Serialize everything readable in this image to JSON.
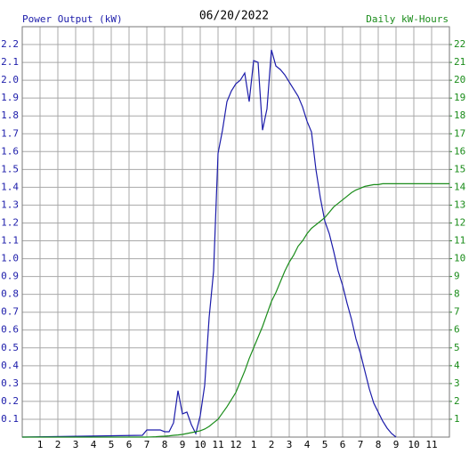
{
  "chart_data": {
    "type": "line",
    "title": "06/20/2022",
    "y_label": "Power Output (kW)",
    "y2_label": "Daily kW-Hours",
    "x": [
      0,
      6.75,
      7,
      7.25,
      7.5,
      7.75,
      8,
      8.25,
      8.5,
      8.75,
      9,
      9.25,
      9.5,
      9.75,
      10,
      10.25,
      10.5,
      10.75,
      11,
      11.25,
      11.5,
      11.75,
      12,
      12.25,
      12.5,
      12.75,
      13,
      13.25,
      13.5,
      13.75,
      14,
      14.25,
      14.5,
      14.75,
      15,
      15.25,
      15.5,
      15.75,
      16,
      16.25,
      16.5,
      16.75,
      17,
      17.25,
      17.5,
      17.75,
      18,
      18.25,
      18.5,
      18.75,
      19,
      19.25,
      19.5,
      19.75,
      20,
      20.25,
      20.5,
      20.75,
      21,
      24
    ],
    "series": [
      {
        "name": "Power Output (kW)",
        "color": "#1c1caa",
        "values": [
          0,
          0.01,
          0.04,
          0.04,
          0.04,
          0.04,
          0.03,
          0.03,
          0.08,
          0.26,
          0.13,
          0.14,
          0.07,
          0.02,
          0.12,
          0.29,
          0.67,
          0.93,
          1.59,
          1.72,
          1.88,
          1.94,
          1.98,
          2.0,
          2.04,
          1.88,
          2.11,
          2.1,
          1.72,
          1.84,
          2.17,
          2.08,
          2.06,
          2.03,
          1.99,
          1.95,
          1.91,
          1.85,
          1.77,
          1.71,
          1.5,
          1.34,
          1.21,
          1.14,
          1.04,
          0.93,
          0.85,
          0.75,
          0.66,
          0.55,
          0.47,
          0.37,
          0.27,
          0.19,
          0.14,
          0.09,
          0.05,
          0.02,
          0,
          null
        ]
      },
      {
        "name": "Daily kW-Hours",
        "color": "#1a8c1a",
        "axis": "y2",
        "values": [
          0,
          0,
          0,
          0.01,
          0.02,
          0.04,
          0.05,
          0.07,
          0.1,
          0.12,
          0.15,
          0.2,
          0.25,
          0.3,
          0.35,
          0.45,
          0.6,
          0.8,
          1.0,
          1.35,
          1.7,
          2.1,
          2.5,
          3.1,
          3.7,
          4.4,
          5.0,
          5.6,
          6.2,
          6.9,
          7.6,
          8.1,
          8.7,
          9.3,
          9.8,
          10.2,
          10.7,
          11.0,
          11.4,
          11.7,
          11.9,
          12.1,
          12.3,
          12.6,
          12.9,
          13.1,
          13.3,
          13.5,
          13.7,
          13.85,
          13.95,
          14.05,
          14.1,
          14.15,
          14.15,
          14.2,
          14.2,
          14.2,
          14.2,
          14.2
        ]
      }
    ],
    "xlim": [
      0,
      24
    ],
    "xticks": [
      1,
      2,
      3,
      4,
      5,
      6,
      7,
      8,
      9,
      10,
      11,
      12,
      {
        "value": 13,
        "label": "1"
      },
      {
        "value": 14,
        "label": "2"
      },
      {
        "value": 15,
        "label": "3"
      },
      {
        "value": 16,
        "label": "4"
      },
      {
        "value": 17,
        "label": "5"
      },
      {
        "value": 18,
        "label": "6"
      },
      {
        "value": 19,
        "label": "7"
      },
      {
        "value": 20,
        "label": "8"
      },
      {
        "value": 21,
        "label": "9"
      },
      {
        "value": 22,
        "label": "10"
      },
      {
        "value": 23,
        "label": "11"
      }
    ],
    "ylim": [
      0,
      2.3
    ],
    "yticks": [
      0.1,
      0.2,
      0.3,
      0.4,
      0.5,
      0.6,
      0.7,
      0.8,
      0.9,
      {
        "value": 1,
        "label": "1.0"
      },
      1.1,
      1.2,
      1.3,
      1.4,
      1.5,
      1.6,
      1.7,
      1.8,
      1.9,
      {
        "value": 2,
        "label": "2.0"
      },
      2.1,
      2.2
    ],
    "y2lim": [
      0,
      23
    ],
    "y2ticks": [
      1,
      2,
      3,
      4,
      5,
      6,
      7,
      8,
      9,
      10,
      11,
      12,
      13,
      14,
      15,
      16,
      17,
      18,
      19,
      20,
      21,
      22
    ],
    "grid": true
  }
}
